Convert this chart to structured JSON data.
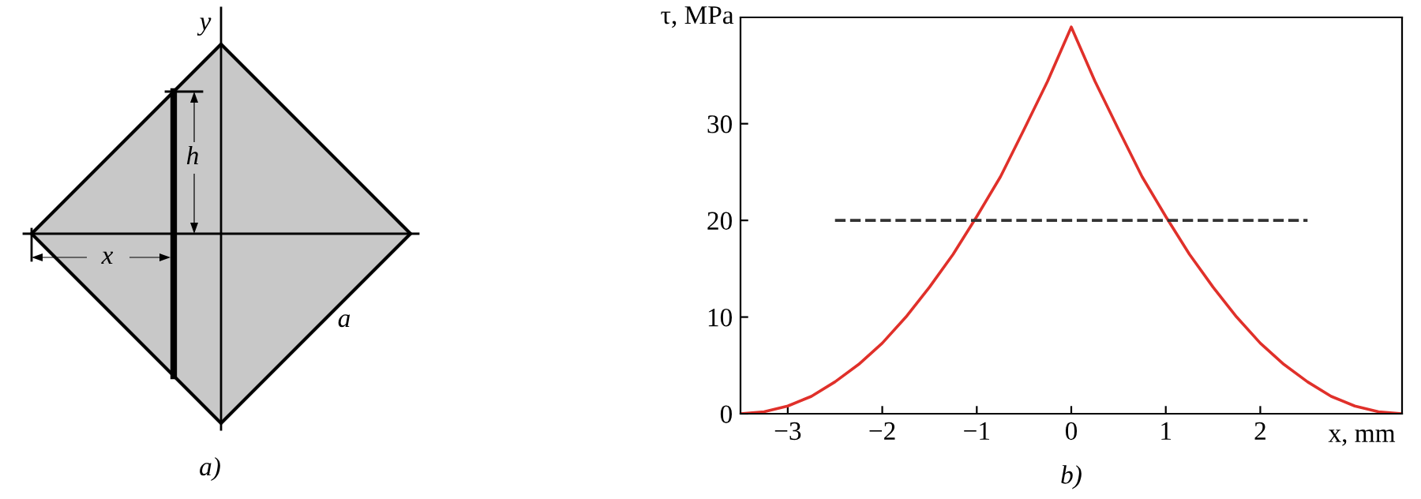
{
  "chart_data": [
    {
      "type": "other",
      "annotations": [
        "y",
        "h",
        "x",
        "a",
        "a)"
      ]
    },
    {
      "type": "line",
      "ylabel": "τ, MPa",
      "xlabel": "x, mm",
      "annotations": [
        "b)"
      ],
      "series": [
        {
          "color": "#e0302a",
          "line_style": "solid",
          "x": [
            -3.5,
            -3.25,
            -3,
            -2.75,
            -2.5,
            -2.25,
            -2,
            -1.75,
            -1.5,
            -1.25,
            -1,
            -0.75,
            -0.5,
            -0.25,
            0,
            0.25,
            0.5,
            0.75,
            1,
            1.25,
            1.5,
            1.75,
            2,
            2.25,
            2.5,
            2.75,
            3,
            3.25,
            3.5
          ],
          "values": [
            0,
            0.2,
            0.8,
            1.8,
            3.3,
            5.1,
            7.3,
            10,
            13.1,
            16.5,
            20.4,
            24.5,
            29.4,
            34.4,
            40,
            34.4,
            29.4,
            24.5,
            20.4,
            16.5,
            13.1,
            10,
            7.3,
            5.1,
            3.3,
            1.8,
            0.8,
            0.2,
            0
          ]
        },
        {
          "color": "#333333",
          "line_style": "dashed",
          "x": [
            -2.5,
            2.5
          ],
          "values": [
            20,
            20
          ]
        }
      ],
      "xlim": [
        -3.5,
        3.5
      ],
      "ylim": [
        0,
        41
      ],
      "xticks": [
        -3,
        -2,
        -1,
        0,
        1,
        2
      ],
      "yticks": [
        0,
        10,
        20,
        30
      ],
      "grid": false,
      "legend": false
    }
  ]
}
